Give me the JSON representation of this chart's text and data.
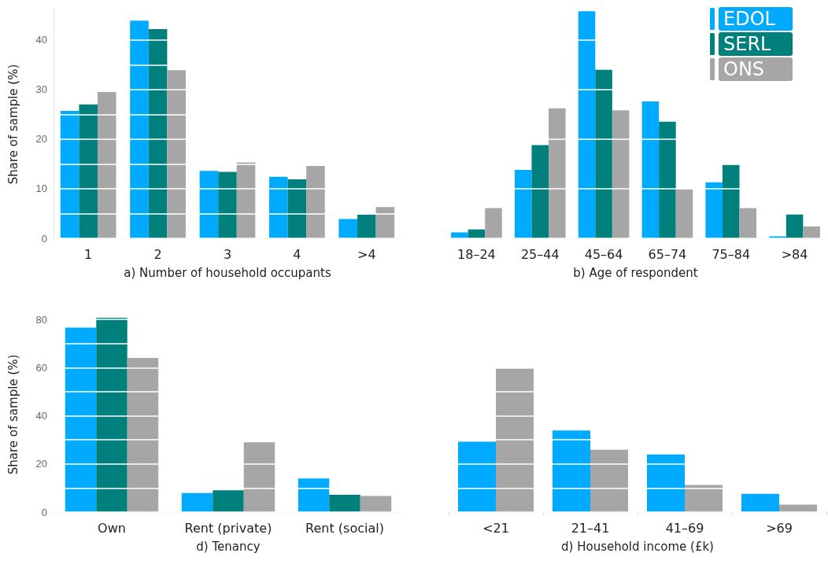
{
  "chart_data": [
    {
      "type": "bar",
      "xlabel": "a) Number of household occupants",
      "ylabel": "Share of sample (%)",
      "categories": [
        "1",
        "2",
        "3",
        "4",
        ">4"
      ],
      "series": [
        {
          "color": "#00aaff",
          "values": [
            25.7,
            43.9,
            13.6,
            12.4,
            3.9
          ]
        },
        {
          "color": "#00807c",
          "values": [
            27.0,
            42.2,
            13.4,
            11.9,
            4.8
          ]
        },
        {
          "color": "#a6a6a6",
          "values": [
            29.5,
            33.9,
            15.3,
            14.6,
            6.3
          ]
        }
      ],
      "ylim": [
        0,
        46
      ],
      "yticks": [
        0,
        {
          "value": 5,
          "label": null
        },
        10,
        {
          "value": 15,
          "label": null
        },
        20,
        {
          "value": 25,
          "label": null
        },
        30,
        {
          "value": 35,
          "label": null
        },
        40
      ],
      "grid": "y",
      "legend": false
    },
    {
      "type": "bar",
      "xlabel": "b) Age of respondent",
      "categories": [
        "18–24",
        "25–44",
        "45–64",
        "65–74",
        "75–84",
        ">84"
      ],
      "series": [
        {
          "name": "EDOL",
          "color": "#00aaff",
          "values": [
            1.2,
            13.8,
            45.8,
            27.6,
            11.3,
            0.4
          ]
        },
        {
          "name": "SERL",
          "color": "#00807c",
          "values": [
            1.8,
            18.8,
            34.0,
            23.5,
            14.8,
            4.8
          ]
        },
        {
          "name": "ONS",
          "color": "#a6a6a6",
          "values": [
            6.1,
            26.2,
            25.8,
            9.9,
            6.1,
            2.4
          ]
        }
      ],
      "yticks": [
        0,
        10,
        20,
        30,
        40
      ],
      "tick_labels": "x",
      "grid": "y",
      "legend": "top right"
    },
    {
      "type": "bar",
      "xlabel": "d) Tenancy",
      "ylabel": "Share of sample (%)",
      "categories": [
        "Own",
        "Rent (private)",
        "Rent (social)"
      ],
      "series": [
        {
          "color": "#00aaff",
          "values": [
            76.6,
            7.9,
            14.0
          ]
        },
        {
          "color": "#00807c",
          "values": [
            80.7,
            9.1,
            7.2
          ]
        },
        {
          "color": "#a6a6a6",
          "values": [
            64.0,
            29.0,
            6.7
          ]
        }
      ],
      "ylim": [
        0,
        81
      ],
      "yticks": [
        0,
        {
          "value": 10,
          "label": null
        },
        20,
        {
          "value": 30,
          "label": null
        },
        40,
        {
          "value": 50,
          "label": null
        },
        60,
        {
          "value": 70,
          "label": null
        },
        80
      ],
      "grid": "y",
      "legend": false
    },
    {
      "type": "bar",
      "xlabel": "d) Household income (£k)",
      "categories": [
        "<21",
        "21–41",
        "41–69",
        ">69"
      ],
      "series": [
        {
          "color": "#00aaff",
          "values": [
            29.2,
            33.9,
            23.9,
            7.6
          ]
        },
        {
          "color": "#a6a6a6",
          "values": [
            59.8,
            25.9,
            11.3,
            3.1
          ]
        }
      ],
      "yticks": [
        0,
        10,
        20,
        30,
        40,
        50,
        60
      ],
      "tick_labels": "x",
      "grid": "y",
      "legend": false
    }
  ]
}
